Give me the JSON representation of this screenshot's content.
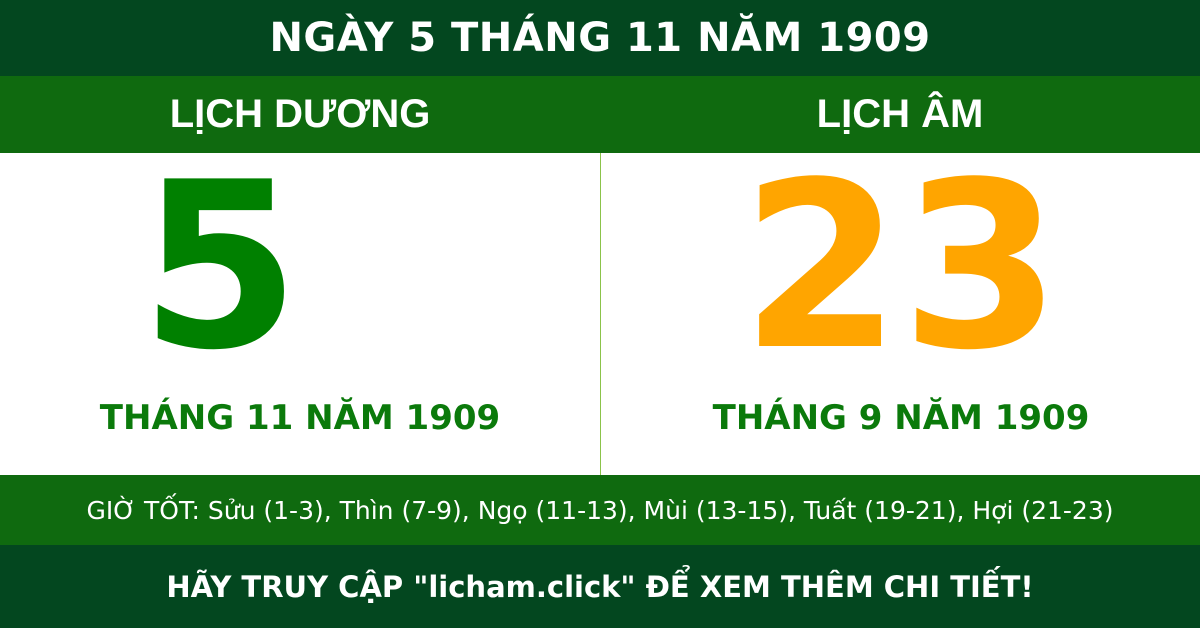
{
  "title": "NGÀY 5 THÁNG 11 NĂM 1909",
  "solar": {
    "heading": "LỊCH DƯƠNG",
    "day": "5",
    "month_year": "THÁNG 11 NĂM 1909"
  },
  "lunar": {
    "heading": "LỊCH ÂM",
    "day": "23",
    "month_year": "THÁNG 9 NĂM 1909"
  },
  "good_hours": "GIỜ TỐT: Sửu (1-3), Thìn (7-9), Ngọ (11-13), Mùi (13-15), Tuất (19-21), Hợi (21-23)",
  "footer": "HÃY TRUY CẬP \"licham.click\" ĐỂ XEM THÊM CHI TIẾT!",
  "colors": {
    "dark_green": "#03471f",
    "green": "#0f6a0f",
    "solar_day": "#008000",
    "lunar_day": "#ffa500"
  }
}
